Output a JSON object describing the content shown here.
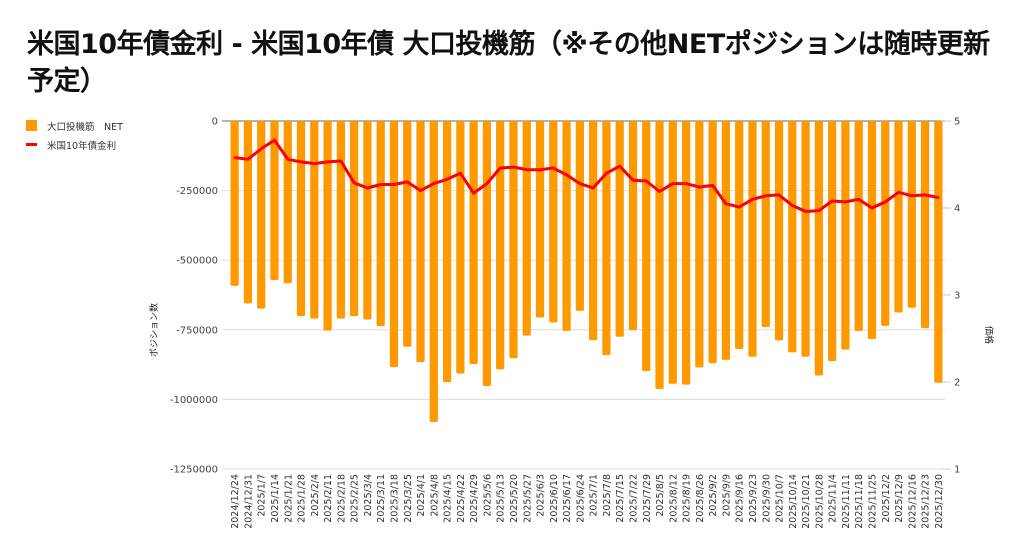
{
  "title": "米国10年債金利 - 米国10年債 大口投機筋（※その他NETポジションは随時更新予定）",
  "legend": [
    {
      "label": "大口投機筋　NET",
      "color": "#ff9900",
      "kind": "bar"
    },
    {
      "label": "米国10年債金利",
      "color": "#ff0000",
      "kind": "line"
    }
  ],
  "chart_data": {
    "type": "bar+line",
    "title": "米国10年債金利 - 米国10年債 大口投機筋（※その他NETポジションは随時更新予定）",
    "xlabel": "",
    "ylabel_left": "ポジション数",
    "ylabel_right": "価格",
    "ylim_left": [
      -1250000,
      0
    ],
    "ylim_right": [
      1,
      5
    ],
    "yticks_left": [
      "0",
      "-250000",
      "-500000",
      "-750000",
      "-1000000",
      "-1250000"
    ],
    "yticks_left_values": [
      0,
      -250000,
      -500000,
      -750000,
      -1000000,
      -1250000
    ],
    "yticks_right": [
      "5",
      "4",
      "3",
      "2",
      "1"
    ],
    "yticks_right_values": [
      5,
      4,
      3,
      2,
      1
    ],
    "grid": true,
    "legend_position": "top-left",
    "categories": [
      "2024/12/24",
      "2024/12/31",
      "2025/1/7",
      "2025/1/14",
      "2025/1/21",
      "2025/1/28",
      "2025/2/4",
      "2025/2/11",
      "2025/2/18",
      "2025/2/25",
      "2025/3/4",
      "2025/3/11",
      "2025/3/18",
      "2025/3/25",
      "2025/4/1",
      "2025/4/8",
      "2025/4/15",
      "2025/4/22",
      "2025/4/29",
      "2025/5/6",
      "2025/5/13",
      "2025/5/20",
      "2025/5/27",
      "2025/6/3",
      "2025/6/10",
      "2025/6/17",
      "2025/6/24",
      "2025/7/1",
      "2025/7/8",
      "2025/7/15",
      "2025/7/22",
      "2025/7/29",
      "2025/8/5",
      "2025/8/12",
      "2025/8/19",
      "2025/8/26",
      "2025/9/2",
      "2025/9/9",
      "2025/9/16",
      "2025/9/23",
      "2025/9/30",
      "2025/10/7",
      "2025/10/14",
      "2025/10/21",
      "2025/10/28",
      "2025/11/4",
      "2025/11/11",
      "2025/11/18",
      "2025/11/25",
      "2025/12/2",
      "2025/12/9",
      "2025/12/16",
      "2025/12/23",
      "2025/12/30"
    ],
    "series": [
      {
        "name": "大口投機筋　NET",
        "type": "bar",
        "axis": "left",
        "color": "#ff9900",
        "values": [
          -592000,
          -655000,
          -674000,
          -571000,
          -583000,
          -701000,
          -710000,
          -753000,
          -710000,
          -701000,
          -713000,
          -737000,
          -884000,
          -811000,
          -866000,
          -1081000,
          -938000,
          -907000,
          -873000,
          -952000,
          -892000,
          -852000,
          -771000,
          -706000,
          -724000,
          -754000,
          -682000,
          -787000,
          -841000,
          -775000,
          -751000,
          -898000,
          -962000,
          -944000,
          -947000,
          -885000,
          -870000,
          -858000,
          -819000,
          -847000,
          -740000,
          -788000,
          -831000,
          -847000,
          -914000,
          -862000,
          -821000,
          -754000,
          -783000,
          -736000,
          -688000,
          -671000,
          -744000,
          -940000
        ]
      },
      {
        "name": "米国10年債金利",
        "type": "line",
        "axis": "right",
        "color": "#ff0000",
        "values": [
          4.58,
          4.56,
          4.68,
          4.78,
          4.56,
          4.53,
          4.51,
          4.53,
          4.54,
          4.29,
          4.23,
          4.27,
          4.27,
          4.3,
          4.2,
          4.28,
          4.33,
          4.4,
          4.17,
          4.28,
          4.46,
          4.47,
          4.44,
          4.44,
          4.46,
          4.38,
          4.28,
          4.23,
          4.4,
          4.48,
          4.32,
          4.31,
          4.19,
          4.28,
          4.28,
          4.24,
          4.26,
          4.05,
          4.01,
          4.1,
          4.14,
          4.15,
          4.03,
          3.96,
          3.97,
          4.08,
          4.07,
          4.1,
          4.0,
          4.07,
          4.18,
          4.14,
          4.15,
          4.12
        ]
      }
    ]
  }
}
